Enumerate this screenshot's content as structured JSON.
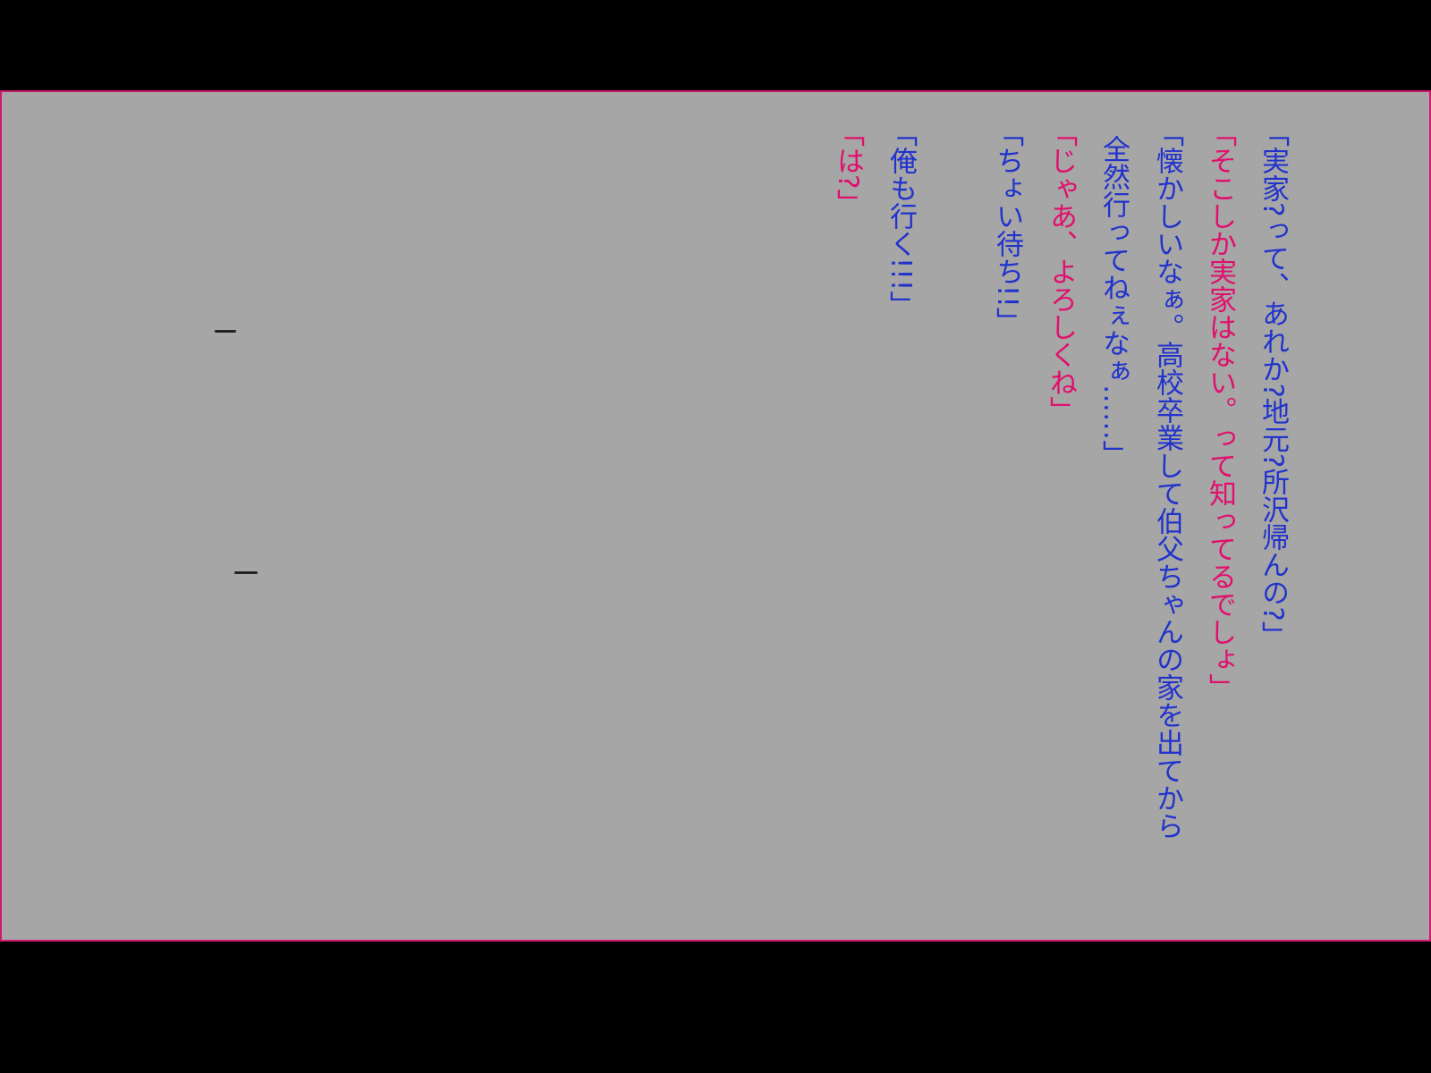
{
  "colors": {
    "background": "#a6a6a6",
    "frame": "#d0186e",
    "speaker_a": "#2233cc",
    "speaker_b": "#e0106e"
  },
  "dialogue": [
    {
      "speaker": "a",
      "lines": [
        "「実家?って、あれか?地元?所沢帰んの?」"
      ]
    },
    {
      "speaker": "b",
      "lines": [
        "「そこしか実家はない。って知ってるでしょ」"
      ]
    },
    {
      "speaker": "a",
      "lines": [
        "「懐かしいなぁ。高校卒業して伯父ちゃんの家を出てから",
        "全然行ってねぇなぁ……」"
      ]
    },
    {
      "speaker": "b",
      "lines": [
        "「じゃあ、よろしくね」"
      ]
    },
    {
      "speaker": "a",
      "lines": [
        "「ちょい待ち!!」"
      ]
    },
    {
      "speaker": "a",
      "lines": [
        "「俺も行く!!!」"
      ]
    },
    {
      "speaker": "b",
      "lines": [
        "「は?」"
      ]
    }
  ]
}
